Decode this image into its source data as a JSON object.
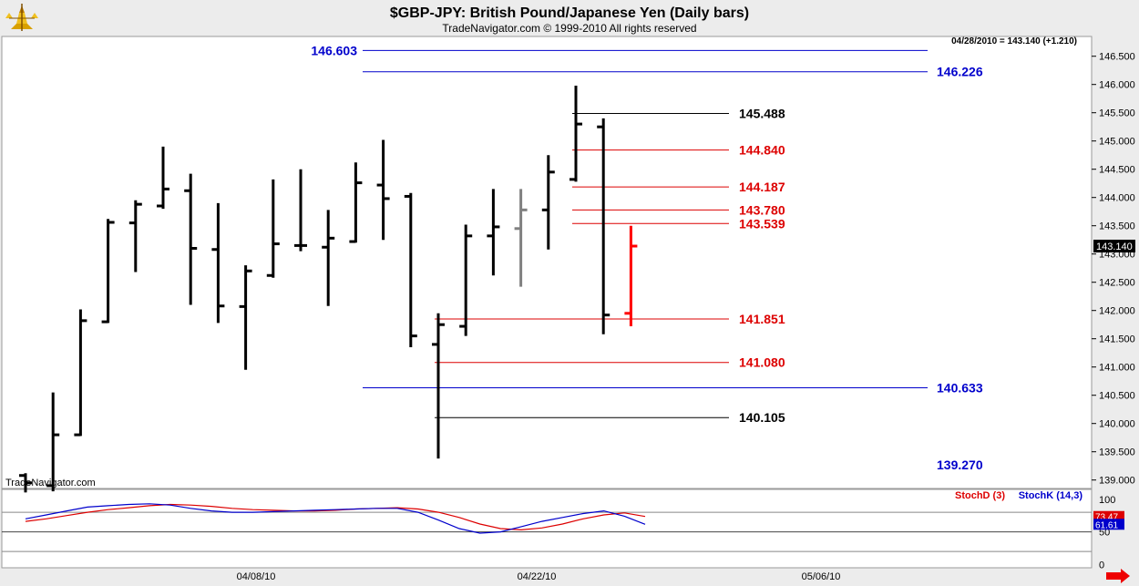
{
  "header": {
    "title": "$GBP-JPY:  British Pound/Japanese Yen  (Daily bars)",
    "subtitle": "TradeNavigator.com © 1999-2010 All rights reserved",
    "last_quote": "04/28/2010 = 143.140 (+1.210)",
    "watermark": "TradeNavigator.com"
  },
  "colors": {
    "bar": "#000000",
    "bar_gray": "#808080",
    "bar_red": "#ff0000",
    "blue": "#0000cc",
    "red": "#dd0000",
    "stochD": "#dd0000",
    "stochK": "#0000cc",
    "background": "#ffffff",
    "panel_bg": "#ececec"
  },
  "chart_data": [
    {
      "type": "ohlc",
      "title": "$GBP-JPY:  British Pound/Japanese Yen  (Daily bars)",
      "ylim": [
        138.85,
        146.85
      ],
      "y_ticks": [
        139.0,
        139.5,
        140.0,
        140.5,
        141.0,
        141.5,
        142.0,
        142.5,
        143.0,
        143.5,
        144.0,
        144.5,
        145.0,
        145.5,
        146.0,
        146.5
      ],
      "x_tick_labels": [
        "04/08/10",
        "04/22/10",
        "05/06/10"
      ],
      "last_price": "143.140",
      "bars": [
        {
          "o": 139.08,
          "h": 139.12,
          "l": 138.78,
          "c": 138.95
        },
        {
          "o": 138.9,
          "h": 140.55,
          "l": 138.8,
          "c": 139.8
        },
        {
          "o": 139.8,
          "h": 142.02,
          "l": 139.78,
          "c": 141.82
        },
        {
          "o": 141.8,
          "h": 143.62,
          "l": 141.78,
          "c": 143.56
        },
        {
          "o": 143.55,
          "h": 143.95,
          "l": 142.68,
          "c": 143.88
        },
        {
          "o": 143.85,
          "h": 144.9,
          "l": 143.8,
          "c": 144.15
        },
        {
          "o": 144.12,
          "h": 144.42,
          "l": 142.1,
          "c": 143.1
        },
        {
          "o": 143.08,
          "h": 143.9,
          "l": 141.78,
          "c": 142.08
        },
        {
          "o": 142.07,
          "h": 142.8,
          "l": 140.95,
          "c": 142.7
        },
        {
          "o": 142.62,
          "h": 144.32,
          "l": 142.58,
          "c": 143.18
        },
        {
          "o": 143.15,
          "h": 144.5,
          "l": 143.05,
          "c": 143.15
        },
        {
          "o": 143.12,
          "h": 143.78,
          "l": 142.08,
          "c": 143.28
        },
        {
          "o": 143.22,
          "h": 144.62,
          "l": 143.2,
          "c": 144.26
        },
        {
          "o": 144.22,
          "h": 145.02,
          "l": 143.25,
          "c": 143.98
        },
        {
          "o": 144.02,
          "h": 144.08,
          "l": 141.35,
          "c": 141.55
        },
        {
          "o": 141.4,
          "h": 141.95,
          "l": 139.38,
          "c": 141.75
        },
        {
          "o": 141.72,
          "h": 143.52,
          "l": 141.55,
          "c": 143.32
        },
        {
          "o": 143.32,
          "h": 144.15,
          "l": 142.62,
          "c": 143.48
        },
        {
          "o": 143.45,
          "h": 144.15,
          "l": 142.42,
          "c": 143.78,
          "color": "gray"
        },
        {
          "o": 143.78,
          "h": 144.75,
          "l": 143.08,
          "c": 144.45
        },
        {
          "o": 144.32,
          "h": 145.98,
          "l": 144.28,
          "c": 145.3
        },
        {
          "o": 145.25,
          "h": 145.4,
          "l": 141.58,
          "c": 141.92
        },
        {
          "o": 141.95,
          "h": 143.5,
          "l": 141.72,
          "c": 143.14,
          "color": "red"
        }
      ],
      "levels": [
        {
          "label": "146.603",
          "value": 146.603,
          "color": "blue",
          "side": "left",
          "x_start": 0.0,
          "x_end": 1.0
        },
        {
          "label": "146.226",
          "value": 146.226,
          "color": "blue",
          "side": "right",
          "x_start": 0.0,
          "x_end": 1.0
        },
        {
          "label": "145.488",
          "value": 145.488,
          "color": "black",
          "side": "mid",
          "x_start": 20.0,
          "x_end": 25.9
        },
        {
          "label": "144.840",
          "value": 144.84,
          "color": "red",
          "side": "mid",
          "x_start": 20.0,
          "x_end": 25.9
        },
        {
          "label": "144.187",
          "value": 144.187,
          "color": "red",
          "side": "mid",
          "x_start": 20.0,
          "x_end": 25.9
        },
        {
          "label": "143.780",
          "value": 143.78,
          "color": "red",
          "side": "mid",
          "x_start": 20.0,
          "x_end": 25.9
        },
        {
          "label": "143.539",
          "value": 143.539,
          "color": "red",
          "side": "mid",
          "x_start": 20.0,
          "x_end": 25.9
        },
        {
          "label": "141.851",
          "value": 141.851,
          "color": "red",
          "side": "mid",
          "x_start": 15.0,
          "x_end": 25.9
        },
        {
          "label": "141.080",
          "value": 141.08,
          "color": "red",
          "side": "mid",
          "x_start": 15.0,
          "x_end": 25.9
        },
        {
          "label": "140.633",
          "value": 140.633,
          "color": "blue",
          "side": "right",
          "x_start": 0.0,
          "x_end": 1.0
        },
        {
          "label": "140.105",
          "value": 140.105,
          "color": "black",
          "side": "mid",
          "x_start": 15.0,
          "x_end": 25.9
        },
        {
          "label": "139.270",
          "value": 139.27,
          "color": "blue",
          "side": "right-label-only"
        }
      ]
    },
    {
      "type": "line",
      "name": "stochastic",
      "ylim": [
        -5,
        115
      ],
      "y_ticks": [
        0,
        50,
        100
      ],
      "series": [
        {
          "name": "StochD (3)",
          "label": "StochD (3)",
          "color": "#dd0000",
          "last": "73.47",
          "values": [
            66,
            70,
            75,
            80,
            84,
            87,
            90,
            92,
            91,
            89,
            86,
            84,
            83,
            82,
            82,
            83,
            85,
            86,
            87,
            85,
            80,
            72,
            62,
            55,
            53,
            56,
            62,
            70,
            76,
            79,
            73.5
          ]
        },
        {
          "name": "StochK (14,3)",
          "label": "StochK (14,3)",
          "color": "#0000cc",
          "last": "61.61",
          "values": [
            70,
            76,
            82,
            88,
            90,
            92,
            93,
            91,
            86,
            82,
            80,
            80,
            81,
            82,
            83,
            84,
            85,
            86,
            86,
            80,
            68,
            55,
            48,
            50,
            58,
            66,
            72,
            78,
            82,
            74,
            61.6
          ]
        }
      ]
    }
  ]
}
